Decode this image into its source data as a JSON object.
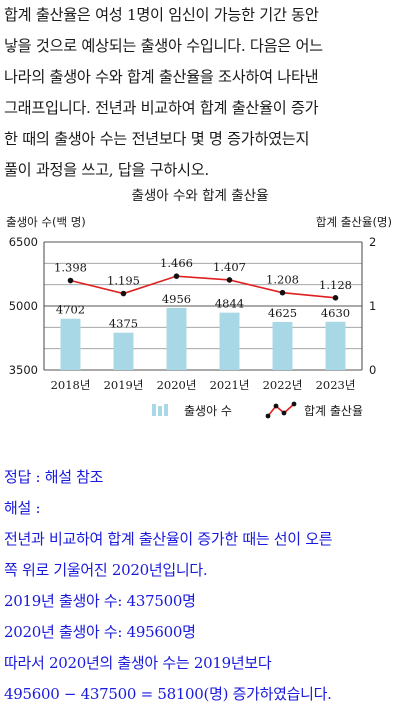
{
  "question": {
    "lines": [
      "합계 출산율은 여성 1명이 임신이 가능한 기간 동안",
      "낳을 것으로 예상되는 출생아 수입니다. 다음은 어느",
      "나라의 출생아 수와 합계 출산율을 조사하여 나타낸",
      "그래프입니다. 전년과 비교하여 합계 출산율이 증가",
      "한 때의 출생아 수는 전년보다 몇 명 증가하였는지",
      "풀이 과정을 쓰고, 답을 구하시오."
    ]
  },
  "chart_data": {
    "type": "bar",
    "title": "출생아 수와 합계 출산율",
    "ylabel_left": "출생아 수(백 명)",
    "ylabel_right": "합계 출산율(명)",
    "categories": [
      "2018년",
      "2019년",
      "2020년",
      "2021년",
      "2022년",
      "2023년"
    ],
    "left_ticks": [
      "6500",
      "5000",
      "3500"
    ],
    "right_ticks": [
      "2",
      "1",
      "0"
    ],
    "ylim_left": [
      3500,
      6500
    ],
    "ylim_right": [
      0,
      2
    ],
    "grid": true,
    "legend_position": "bottom",
    "series": [
      {
        "name": "출생아 수",
        "type": "bar",
        "axis": "left",
        "color": "#a8d8e6",
        "values": [
          4702,
          4375,
          4956,
          4844,
          4625,
          4630
        ],
        "labels": [
          "4702",
          "4375",
          "4956",
          "4844",
          "4625",
          "4630"
        ]
      },
      {
        "name": "합계 출산율",
        "type": "line",
        "axis": "right",
        "color": "#e02020",
        "values": [
          1.398,
          1.195,
          1.466,
          1.407,
          1.208,
          1.128
        ],
        "labels": [
          "1.398",
          "1.195",
          "1.466",
          "1.407",
          "1.208",
          "1.128"
        ]
      }
    ]
  },
  "answer": {
    "lines": [
      "정답 : 해설 참조",
      "해설 :",
      "전년과 비교하여 합계 출산율이 증가한 때는 선이 오른",
      "쪽 위로 기울어진 2020년입니다.",
      "2019년 출생아 수: 437500명",
      "2020년 출생아 수: 495600명",
      "따라서 2020년의 출생아 수는 2019년보다",
      "495600 − 437500 = 58100(명) 증가하였습니다."
    ]
  },
  "colors": {
    "answer_text": "#1a1adc",
    "bar": "#a8d8e6",
    "line": "#e02020"
  }
}
